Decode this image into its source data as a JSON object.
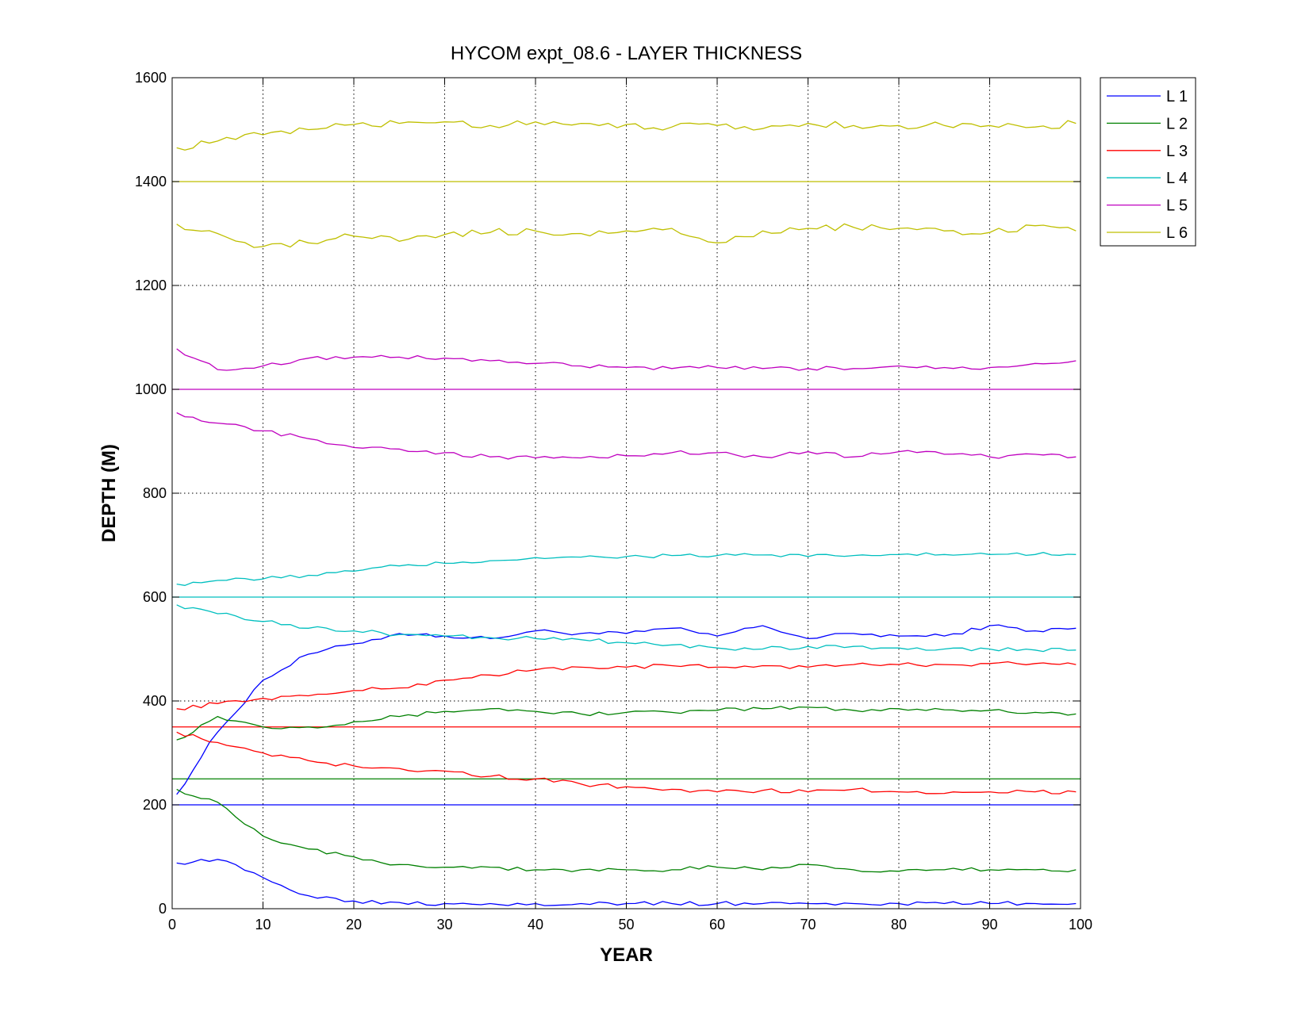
{
  "chart_data": {
    "type": "line",
    "title": "HYCOM expt_08.6 - LAYER THICKNESS",
    "xlabel": "YEAR",
    "ylabel": "DEPTH (M)",
    "xlim": [
      0,
      100
    ],
    "ylim": [
      0,
      1600
    ],
    "xticks": [
      0,
      10,
      20,
      30,
      40,
      50,
      60,
      70,
      80,
      90,
      100
    ],
    "yticks": [
      0,
      200,
      400,
      600,
      800,
      1000,
      1200,
      1400,
      1600
    ],
    "grid": true,
    "legend_position": "outside-top-right",
    "reference_lines": [
      {
        "layer": "L 1",
        "y": 200
      },
      {
        "layer": "L 2",
        "y": 250
      },
      {
        "layer": "L 3",
        "y": 350
      },
      {
        "layer": "L 4",
        "y": 600
      },
      {
        "layer": "L 5",
        "y": 1000
      },
      {
        "layer": "L 6",
        "y": 1400
      }
    ],
    "x": [
      0.5,
      5,
      10,
      15,
      20,
      25,
      30,
      35,
      40,
      45,
      50,
      55,
      60,
      65,
      70,
      75,
      80,
      85,
      90,
      95,
      99.5
    ],
    "series": [
      {
        "name": "L 1",
        "color": "#0000ff",
        "bands": [
          {
            "band": "upper",
            "values": [
              220,
              340,
              440,
              490,
              510,
              530,
              525,
              520,
              535,
              530,
              530,
              540,
              525,
              545,
              520,
              530,
              525,
              525,
              545,
              535,
              540
            ]
          },
          {
            "band": "lower",
            "values": [
              88,
              95,
              60,
              25,
              15,
              12,
              10,
              10,
              10,
              10,
              10,
              10,
              10,
              10,
              10,
              10,
              10,
              10,
              10,
              10,
              10
            ]
          }
        ]
      },
      {
        "name": "L 2",
        "color": "#008000",
        "bands": [
          {
            "band": "upper",
            "values": [
              325,
              370,
              350,
              350,
              360,
              370,
              380,
              385,
              380,
              375,
              378,
              378,
              382,
              385,
              388,
              382,
              385,
              383,
              382,
              378,
              375
            ]
          },
          {
            "band": "lower",
            "values": [
              230,
              205,
              140,
              115,
              100,
              85,
              80,
              80,
              75,
              75,
              75,
              75,
              80,
              75,
              85,
              75,
              72,
              75,
              75,
              75,
              75
            ]
          }
        ]
      },
      {
        "name": "L 3",
        "color": "#ff0000",
        "bands": [
          {
            "band": "upper",
            "values": [
              385,
              395,
              405,
              410,
              420,
              425,
              440,
              450,
              460,
              465,
              465,
              468,
              465,
              468,
              465,
              470,
              470,
              470,
              472,
              472,
              470
            ]
          },
          {
            "band": "lower",
            "values": [
              340,
              320,
              300,
              285,
              275,
              270,
              265,
              255,
              250,
              240,
              235,
              230,
              225,
              228,
              225,
              230,
              225,
              222,
              225,
              225,
              225
            ]
          }
        ]
      },
      {
        "name": "L 4",
        "color": "#00bfbf",
        "bands": [
          {
            "band": "upper",
            "values": [
              625,
              632,
              635,
              642,
              650,
              660,
              665,
              670,
              676,
              677,
              678,
              680,
              680,
              681,
              678,
              680,
              682,
              682,
              682,
              682,
              682
            ]
          },
          {
            "band": "lower",
            "values": [
              585,
              568,
              553,
              540,
              535,
              528,
              525,
              522,
              520,
              518,
              512,
              508,
              502,
              500,
              505,
              505,
              502,
              500,
              500,
              498,
              498
            ]
          }
        ]
      },
      {
        "name": "L 5",
        "color": "#bf00bf",
        "bands": [
          {
            "band": "upper",
            "values": [
              1078,
              1038,
              1045,
              1060,
              1062,
              1062,
              1060,
              1055,
              1050,
              1045,
              1042,
              1040,
              1042,
              1040,
              1040,
              1040,
              1045,
              1042,
              1042,
              1050,
              1055
            ]
          },
          {
            "band": "lower",
            "values": [
              955,
              935,
              920,
              905,
              888,
              885,
              878,
              870,
              868,
              868,
              872,
              878,
              878,
              870,
              880,
              870,
              880,
              875,
              870,
              875,
              870
            ]
          }
        ]
      },
      {
        "name": "L 6",
        "color": "#bfbf00",
        "bands": [
          {
            "band": "upper",
            "values": [
              1465,
              1478,
              1490,
              1500,
              1510,
              1512,
              1515,
              1508,
              1515,
              1512,
              1510,
              1505,
              1508,
              1502,
              1512,
              1508,
              1508,
              1508,
              1508,
              1505,
              1512
            ]
          },
          {
            "band": "lower",
            "values": [
              1318,
              1300,
              1275,
              1282,
              1295,
              1285,
              1298,
              1302,
              1305,
              1300,
              1305,
              1310,
              1282,
              1305,
              1310,
              1312,
              1310,
              1305,
              1302,
              1315,
              1305
            ]
          }
        ]
      }
    ]
  }
}
